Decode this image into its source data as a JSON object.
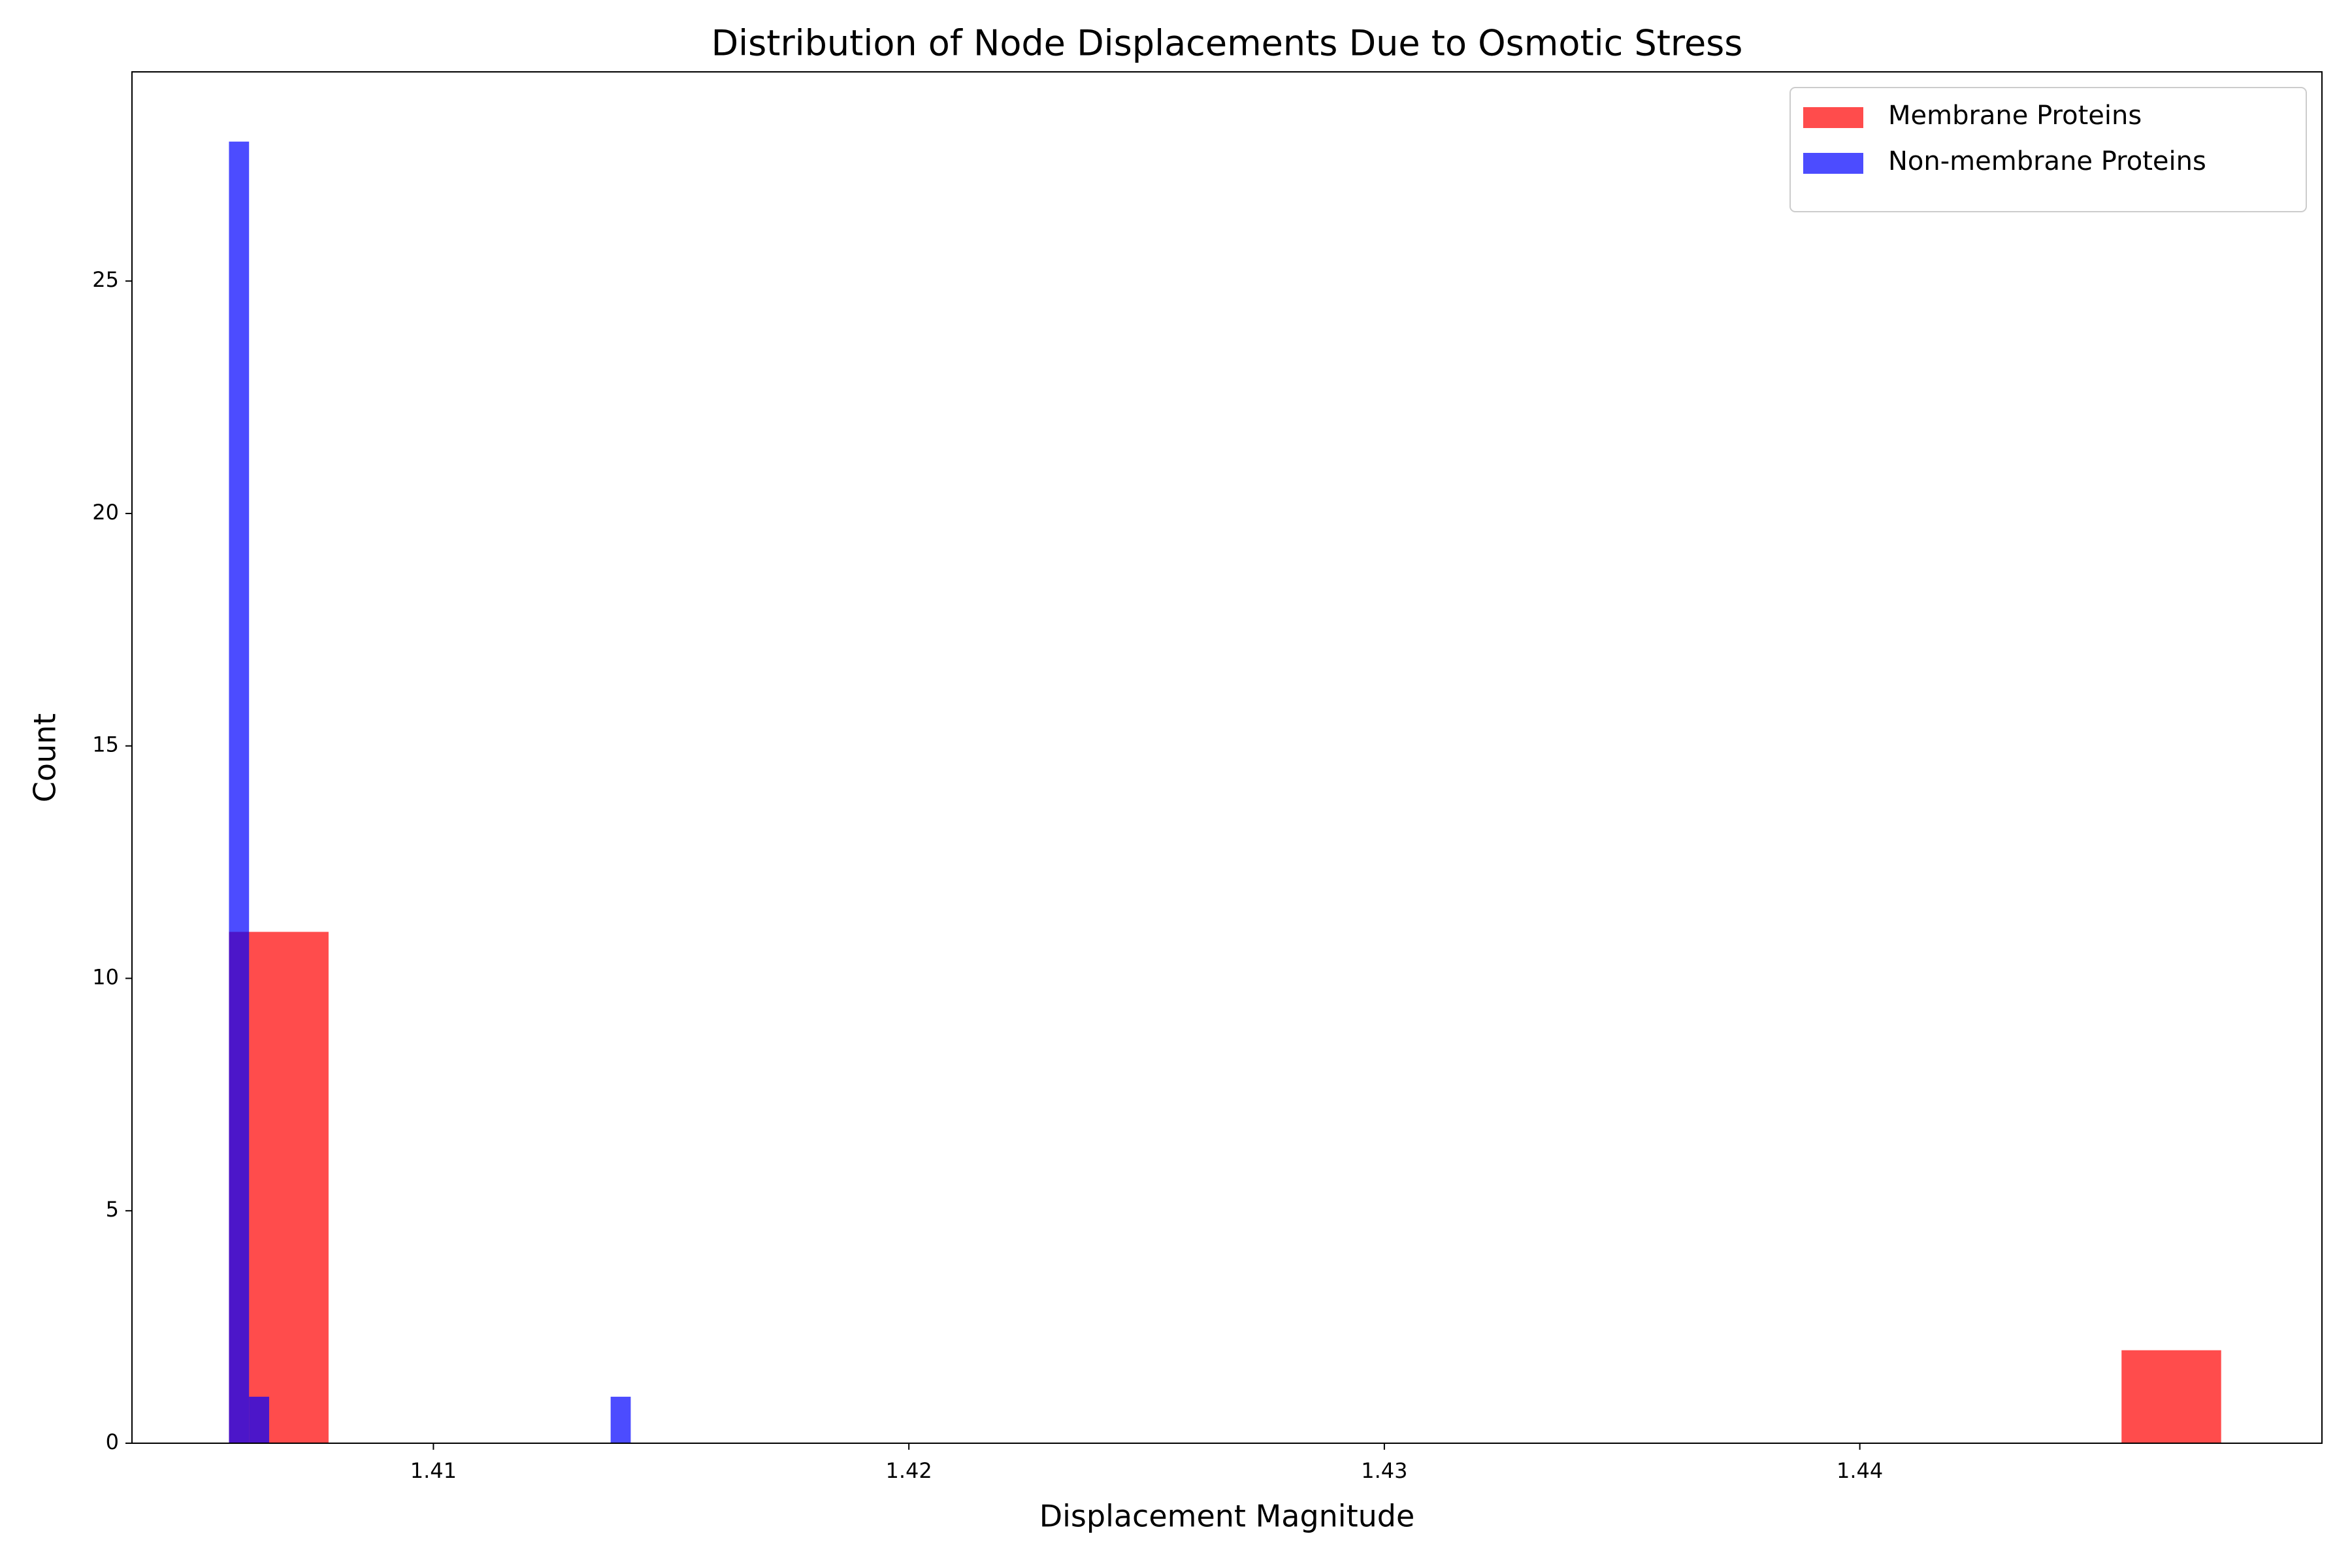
{
  "chart_data": {
    "type": "histogram",
    "title": "Distribution of Node Displacements Due to Osmotic Stress",
    "x_label": "Displacement Magnitude",
    "y_label": "Count",
    "series": [
      {
        "name": "Membrane Proteins",
        "color": "#ff0000",
        "bins": [
          1.4057,
          1.407795,
          1.40989,
          1.411985,
          1.41408,
          1.416175,
          1.41827,
          1.420365,
          1.42246,
          1.424555,
          1.42665,
          1.428745,
          1.43084,
          1.432935,
          1.43503,
          1.437125,
          1.43922,
          1.441315,
          1.44341,
          1.445505,
          1.4476
        ],
        "values": [
          11,
          0,
          0,
          0,
          0,
          0,
          0,
          0,
          0,
          0,
          0,
          0,
          0,
          0,
          0,
          0,
          0,
          0,
          0,
          2
        ]
      },
      {
        "name": "Non-membrane Proteins",
        "color": "#0000ff",
        "bins": [
          1.4057,
          1.4061225,
          1.406545,
          1.4069675,
          1.40739,
          1.4078125,
          1.408235,
          1.4086575,
          1.40908,
          1.4095025,
          1.409925,
          1.4103475,
          1.41077,
          1.4111925,
          1.411615,
          1.4120375,
          1.41246,
          1.4128825,
          1.413305,
          1.4137275,
          1.41415
        ],
        "values": [
          28,
          1,
          0,
          0,
          0,
          0,
          0,
          0,
          0,
          0,
          0,
          0,
          0,
          0,
          0,
          0,
          0,
          0,
          0,
          1
        ]
      }
    ],
    "opacity": 0.7,
    "xlim": [
      1.40366,
      1.44972
    ],
    "xticks": [
      1.41,
      1.42,
      1.43,
      1.44
    ],
    "ylim": [
      0,
      29.5
    ],
    "yticks": [
      0,
      5,
      10,
      15,
      20,
      25
    ],
    "legend": "upper right"
  }
}
